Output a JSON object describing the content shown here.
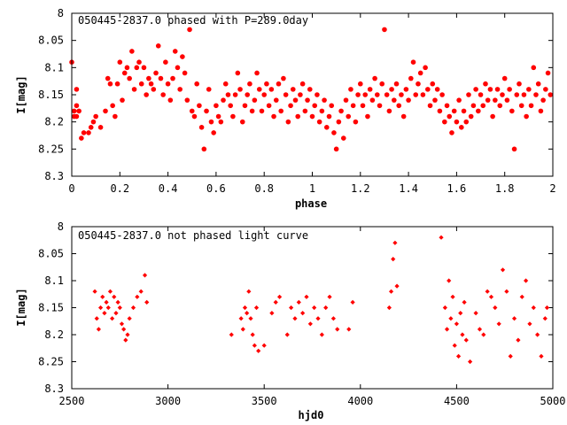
{
  "chart_data": [
    {
      "type": "scatter",
      "title": "050445-2837.0 phased with P=289.0day",
      "xlabel": "phase",
      "ylabel": "I[mag]",
      "xlim": [
        0,
        2
      ],
      "ylim": [
        8.3,
        8.0
      ],
      "y_inverted": true,
      "grid": false,
      "x_ticks": [
        "0",
        "0.2",
        "0.4",
        "0.6",
        "0.8",
        "1",
        "1.2",
        "1.4",
        "1.6",
        "1.8",
        "2"
      ],
      "y_ticks": [
        "8",
        "8.05",
        "8.1",
        "8.15",
        "8.2",
        "8.25",
        "8.3"
      ],
      "marker": "filled-circle",
      "color": "#ff0000",
      "points": [
        [
          0.0,
          8.09
        ],
        [
          0.01,
          8.19
        ],
        [
          0.01,
          8.18
        ],
        [
          0.02,
          8.14
        ],
        [
          0.02,
          8.17
        ],
        [
          0.02,
          8.19
        ],
        [
          0.03,
          8.18
        ],
        [
          0.04,
          8.23
        ],
        [
          0.05,
          8.22
        ],
        [
          0.07,
          8.22
        ],
        [
          0.08,
          8.21
        ],
        [
          0.09,
          8.2
        ],
        [
          0.1,
          8.19
        ],
        [
          0.12,
          8.21
        ],
        [
          0.14,
          8.18
        ],
        [
          0.15,
          8.12
        ],
        [
          0.16,
          8.13
        ],
        [
          0.17,
          8.17
        ],
        [
          0.18,
          8.19
        ],
        [
          0.19,
          8.13
        ],
        [
          0.2,
          8.09
        ],
        [
          0.21,
          8.16
        ],
        [
          0.22,
          8.11
        ],
        [
          0.23,
          8.1
        ],
        [
          0.24,
          8.12
        ],
        [
          0.25,
          8.07
        ],
        [
          0.26,
          8.14
        ],
        [
          0.27,
          8.1
        ],
        [
          0.28,
          8.09
        ],
        [
          0.29,
          8.13
        ],
        [
          0.3,
          8.1
        ],
        [
          0.31,
          8.15
        ],
        [
          0.32,
          8.12
        ],
        [
          0.33,
          8.13
        ],
        [
          0.34,
          8.14
        ],
        [
          0.35,
          8.11
        ],
        [
          0.36,
          8.06
        ],
        [
          0.37,
          8.12
        ],
        [
          0.38,
          8.15
        ],
        [
          0.39,
          8.09
        ],
        [
          0.4,
          8.13
        ],
        [
          0.41,
          8.16
        ],
        [
          0.42,
          8.12
        ],
        [
          0.43,
          8.07
        ],
        [
          0.44,
          8.1
        ],
        [
          0.45,
          8.14
        ],
        [
          0.46,
          8.08
        ],
        [
          0.47,
          8.11
        ],
        [
          0.48,
          8.16
        ],
        [
          0.49,
          8.03
        ],
        [
          0.5,
          8.18
        ],
        [
          0.51,
          8.19
        ],
        [
          0.52,
          8.13
        ],
        [
          0.53,
          8.17
        ],
        [
          0.54,
          8.21
        ],
        [
          0.55,
          8.25
        ],
        [
          0.56,
          8.18
        ],
        [
          0.57,
          8.14
        ],
        [
          0.58,
          8.2
        ],
        [
          0.59,
          8.22
        ],
        [
          0.6,
          8.17
        ],
        [
          0.61,
          8.19
        ],
        [
          0.62,
          8.2
        ],
        [
          0.63,
          8.16
        ],
        [
          0.64,
          8.13
        ],
        [
          0.65,
          8.15
        ],
        [
          0.66,
          8.17
        ],
        [
          0.67,
          8.19
        ],
        [
          0.68,
          8.15
        ],
        [
          0.69,
          8.11
        ],
        [
          0.7,
          8.14
        ],
        [
          0.71,
          8.2
        ],
        [
          0.72,
          8.17
        ],
        [
          0.73,
          8.15
        ],
        [
          0.74,
          8.13
        ],
        [
          0.75,
          8.18
        ],
        [
          0.76,
          8.16
        ],
        [
          0.77,
          8.11
        ],
        [
          0.78,
          8.14
        ],
        [
          0.79,
          8.18
        ],
        [
          0.8,
          8.15
        ],
        [
          0.81,
          8.13
        ],
        [
          0.82,
          8.17
        ],
        [
          0.83,
          8.14
        ],
        [
          0.84,
          8.19
        ],
        [
          0.85,
          8.16
        ],
        [
          0.86,
          8.13
        ],
        [
          0.87,
          8.18
        ],
        [
          0.88,
          8.12
        ],
        [
          0.89,
          8.15
        ],
        [
          0.9,
          8.2
        ],
        [
          0.91,
          8.17
        ],
        [
          0.92,
          8.14
        ],
        [
          0.93,
          8.16
        ],
        [
          0.94,
          8.19
        ],
        [
          0.95,
          8.15
        ],
        [
          0.96,
          8.13
        ],
        [
          0.97,
          8.18
        ],
        [
          0.98,
          8.16
        ],
        [
          0.99,
          8.14
        ],
        [
          1.0,
          8.19
        ],
        [
          1.01,
          8.17
        ],
        [
          1.02,
          8.15
        ],
        [
          1.03,
          8.2
        ],
        [
          1.04,
          8.18
        ],
        [
          1.05,
          8.16
        ],
        [
          1.06,
          8.21
        ],
        [
          1.07,
          8.19
        ],
        [
          1.08,
          8.17
        ],
        [
          1.09,
          8.22
        ],
        [
          1.1,
          8.25
        ],
        [
          1.11,
          8.2
        ],
        [
          1.12,
          8.18
        ],
        [
          1.13,
          8.23
        ],
        [
          1.14,
          8.16
        ],
        [
          1.15,
          8.19
        ],
        [
          1.16,
          8.14
        ],
        [
          1.17,
          8.17
        ],
        [
          1.18,
          8.2
        ],
        [
          1.19,
          8.15
        ],
        [
          1.2,
          8.13
        ],
        [
          1.21,
          8.17
        ],
        [
          1.22,
          8.15
        ],
        [
          1.23,
          8.19
        ],
        [
          1.24,
          8.14
        ],
        [
          1.25,
          8.16
        ],
        [
          1.26,
          8.12
        ],
        [
          1.27,
          8.15
        ],
        [
          1.28,
          8.17
        ],
        [
          1.29,
          8.13
        ],
        [
          1.3,
          8.03
        ],
        [
          1.31,
          8.15
        ],
        [
          1.32,
          8.18
        ],
        [
          1.33,
          8.14
        ],
        [
          1.34,
          8.16
        ],
        [
          1.35,
          8.13
        ],
        [
          1.36,
          8.17
        ],
        [
          1.37,
          8.15
        ],
        [
          1.38,
          8.19
        ],
        [
          1.39,
          8.14
        ],
        [
          1.4,
          8.16
        ],
        [
          1.41,
          8.12
        ],
        [
          1.42,
          8.09
        ],
        [
          1.43,
          8.15
        ],
        [
          1.44,
          8.13
        ],
        [
          1.45,
          8.11
        ],
        [
          1.46,
          8.15
        ],
        [
          1.47,
          8.1
        ],
        [
          1.48,
          8.14
        ],
        [
          1.49,
          8.17
        ],
        [
          1.5,
          8.13
        ],
        [
          1.51,
          8.16
        ],
        [
          1.52,
          8.14
        ],
        [
          1.53,
          8.18
        ],
        [
          1.54,
          8.15
        ],
        [
          1.55,
          8.2
        ],
        [
          1.56,
          8.17
        ],
        [
          1.57,
          8.19
        ],
        [
          1.58,
          8.22
        ],
        [
          1.59,
          8.18
        ],
        [
          1.6,
          8.2
        ],
        [
          1.61,
          8.16
        ],
        [
          1.62,
          8.21
        ],
        [
          1.63,
          8.18
        ],
        [
          1.64,
          8.2
        ],
        [
          1.65,
          8.15
        ],
        [
          1.66,
          8.19
        ],
        [
          1.67,
          8.17
        ],
        [
          1.68,
          8.14
        ],
        [
          1.69,
          8.18
        ],
        [
          1.7,
          8.15
        ],
        [
          1.71,
          8.17
        ],
        [
          1.72,
          8.13
        ],
        [
          1.73,
          8.16
        ],
        [
          1.74,
          8.14
        ],
        [
          1.75,
          8.19
        ],
        [
          1.76,
          8.16
        ],
        [
          1.77,
          8.14
        ],
        [
          1.78,
          8.17
        ],
        [
          1.79,
          8.15
        ],
        [
          1.8,
          8.12
        ],
        [
          1.81,
          8.16
        ],
        [
          1.82,
          8.14
        ],
        [
          1.83,
          8.18
        ],
        [
          1.84,
          8.25
        ],
        [
          1.85,
          8.15
        ],
        [
          1.86,
          8.13
        ],
        [
          1.87,
          8.17
        ],
        [
          1.88,
          8.15
        ],
        [
          1.89,
          8.19
        ],
        [
          1.9,
          8.14
        ],
        [
          1.91,
          8.17
        ],
        [
          1.92,
          8.1
        ],
        [
          1.93,
          8.15
        ],
        [
          1.94,
          8.13
        ],
        [
          1.95,
          8.18
        ],
        [
          1.96,
          8.16
        ],
        [
          1.97,
          8.14
        ],
        [
          1.98,
          8.11
        ],
        [
          1.99,
          8.15
        ]
      ]
    },
    {
      "type": "scatter",
      "title": "050445-2837.0 not phased light curve",
      "xlabel": "hjd0",
      "ylabel": "I[mag]",
      "xlim": [
        2500,
        5000
      ],
      "ylim": [
        8.3,
        8.0
      ],
      "y_inverted": true,
      "grid": false,
      "x_ticks": [
        "2500",
        "3000",
        "3500",
        "4000",
        "4500",
        "5000"
      ],
      "y_ticks": [
        "8",
        "8.05",
        "8.1",
        "8.15",
        "8.2",
        "8.25",
        "8.3"
      ],
      "marker": "small-diamond",
      "color": "#ff0000",
      "points": [
        [
          2620,
          8.12
        ],
        [
          2630,
          8.17
        ],
        [
          2640,
          8.19
        ],
        [
          2650,
          8.15
        ],
        [
          2660,
          8.13
        ],
        [
          2670,
          8.16
        ],
        [
          2680,
          8.14
        ],
        [
          2690,
          8.15
        ],
        [
          2700,
          8.12
        ],
        [
          2710,
          8.17
        ],
        [
          2720,
          8.13
        ],
        [
          2730,
          8.16
        ],
        [
          2740,
          8.14
        ],
        [
          2750,
          8.15
        ],
        [
          2760,
          8.18
        ],
        [
          2770,
          8.19
        ],
        [
          2780,
          8.21
        ],
        [
          2790,
          8.2
        ],
        [
          2800,
          8.17
        ],
        [
          2820,
          8.15
        ],
        [
          2840,
          8.13
        ],
        [
          2860,
          8.12
        ],
        [
          2880,
          8.09
        ],
        [
          2890,
          8.14
        ],
        [
          3330,
          8.2
        ],
        [
          3380,
          8.17
        ],
        [
          3390,
          8.19
        ],
        [
          3400,
          8.15
        ],
        [
          3410,
          8.16
        ],
        [
          3420,
          8.12
        ],
        [
          3430,
          8.17
        ],
        [
          3440,
          8.2
        ],
        [
          3450,
          8.22
        ],
        [
          3460,
          8.15
        ],
        [
          3470,
          8.23
        ],
        [
          3500,
          8.22
        ],
        [
          3540,
          8.16
        ],
        [
          3560,
          8.14
        ],
        [
          3580,
          8.13
        ],
        [
          3620,
          8.2
        ],
        [
          3640,
          8.15
        ],
        [
          3660,
          8.17
        ],
        [
          3680,
          8.14
        ],
        [
          3700,
          8.16
        ],
        [
          3720,
          8.13
        ],
        [
          3740,
          8.18
        ],
        [
          3760,
          8.15
        ],
        [
          3780,
          8.17
        ],
        [
          3800,
          8.2
        ],
        [
          3820,
          8.15
        ],
        [
          3840,
          8.13
        ],
        [
          3860,
          8.17
        ],
        [
          3880,
          8.19
        ],
        [
          3940,
          8.19
        ],
        [
          3960,
          8.14
        ],
        [
          4150,
          8.15
        ],
        [
          4160,
          8.12
        ],
        [
          4170,
          8.06
        ],
        [
          4180,
          8.03
        ],
        [
          4190,
          8.11
        ],
        [
          4420,
          8.02
        ],
        [
          4440,
          8.15
        ],
        [
          4450,
          8.19
        ],
        [
          4460,
          8.1
        ],
        [
          4470,
          8.17
        ],
        [
          4480,
          8.13
        ],
        [
          4490,
          8.22
        ],
        [
          4500,
          8.18
        ],
        [
          4510,
          8.24
        ],
        [
          4520,
          8.16
        ],
        [
          4530,
          8.2
        ],
        [
          4540,
          8.14
        ],
        [
          4550,
          8.21
        ],
        [
          4570,
          8.25
        ],
        [
          4600,
          8.16
        ],
        [
          4620,
          8.19
        ],
        [
          4640,
          8.2
        ],
        [
          4660,
          8.12
        ],
        [
          4680,
          8.13
        ],
        [
          4700,
          8.15
        ],
        [
          4720,
          8.18
        ],
        [
          4740,
          8.08
        ],
        [
          4760,
          8.12
        ],
        [
          4780,
          8.24
        ],
        [
          4800,
          8.17
        ],
        [
          4820,
          8.21
        ],
        [
          4840,
          8.13
        ],
        [
          4860,
          8.1
        ],
        [
          4880,
          8.18
        ],
        [
          4900,
          8.15
        ],
        [
          4920,
          8.2
        ],
        [
          4940,
          8.24
        ],
        [
          4960,
          8.17
        ],
        [
          4970,
          8.15
        ]
      ]
    }
  ]
}
